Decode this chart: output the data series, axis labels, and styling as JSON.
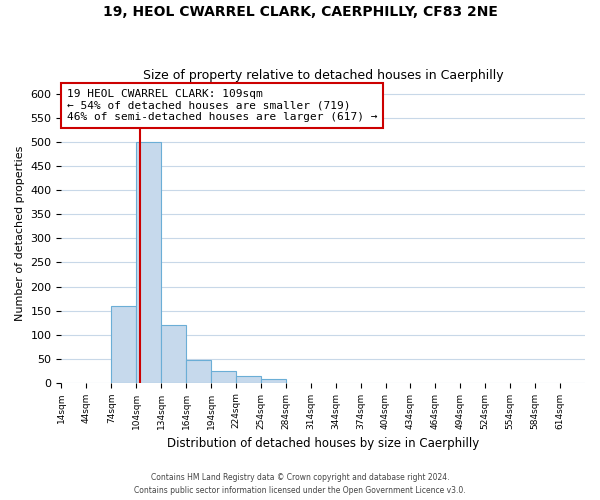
{
  "title": "19, HEOL CWARREL CLARK, CAERPHILLY, CF83 2NE",
  "subtitle": "Size of property relative to detached houses in Caerphilly",
  "xlabel": "Distribution of detached houses by size in Caerphilly",
  "ylabel": "Number of detached properties",
  "bar_values": [
    0,
    0,
    160,
    500,
    120,
    47,
    25,
    14,
    8,
    0,
    0,
    0,
    0,
    0,
    0,
    0,
    0,
    0,
    0,
    0,
    0
  ],
  "bin_edges": [
    14,
    44,
    74,
    104,
    134,
    164,
    194,
    224,
    254,
    284,
    314,
    344,
    374,
    404,
    434,
    464,
    494,
    524,
    554,
    584,
    614,
    644
  ],
  "tick_labels": [
    "14sqm",
    "44sqm",
    "74sqm",
    "104sqm",
    "134sqm",
    "164sqm",
    "194sqm",
    "224sqm",
    "254sqm",
    "284sqm",
    "314sqm",
    "344sqm",
    "374sqm",
    "404sqm",
    "434sqm",
    "464sqm",
    "494sqm",
    "524sqm",
    "554sqm",
    "584sqm",
    "614sqm"
  ],
  "ylim": [
    0,
    620
  ],
  "yticks": [
    0,
    50,
    100,
    150,
    200,
    250,
    300,
    350,
    400,
    450,
    500,
    550,
    600
  ],
  "bar_color": "#c6d9ec",
  "bar_edge_color": "#6baed6",
  "vline_x": 109,
  "vline_color": "#cc0000",
  "annotation_line1": "19 HEOL CWARREL CLARK: 109sqm",
  "annotation_line2": "← 54% of detached houses are smaller (719)",
  "annotation_line3": "46% of semi-detached houses are larger (617) →",
  "annotation_box_color": "#ffffff",
  "annotation_box_edge": "#cc0000",
  "footer_line1": "Contains HM Land Registry data © Crown copyright and database right 2024.",
  "footer_line2": "Contains public sector information licensed under the Open Government Licence v3.0.",
  "background_color": "#ffffff",
  "grid_color": "#c8d8e8"
}
